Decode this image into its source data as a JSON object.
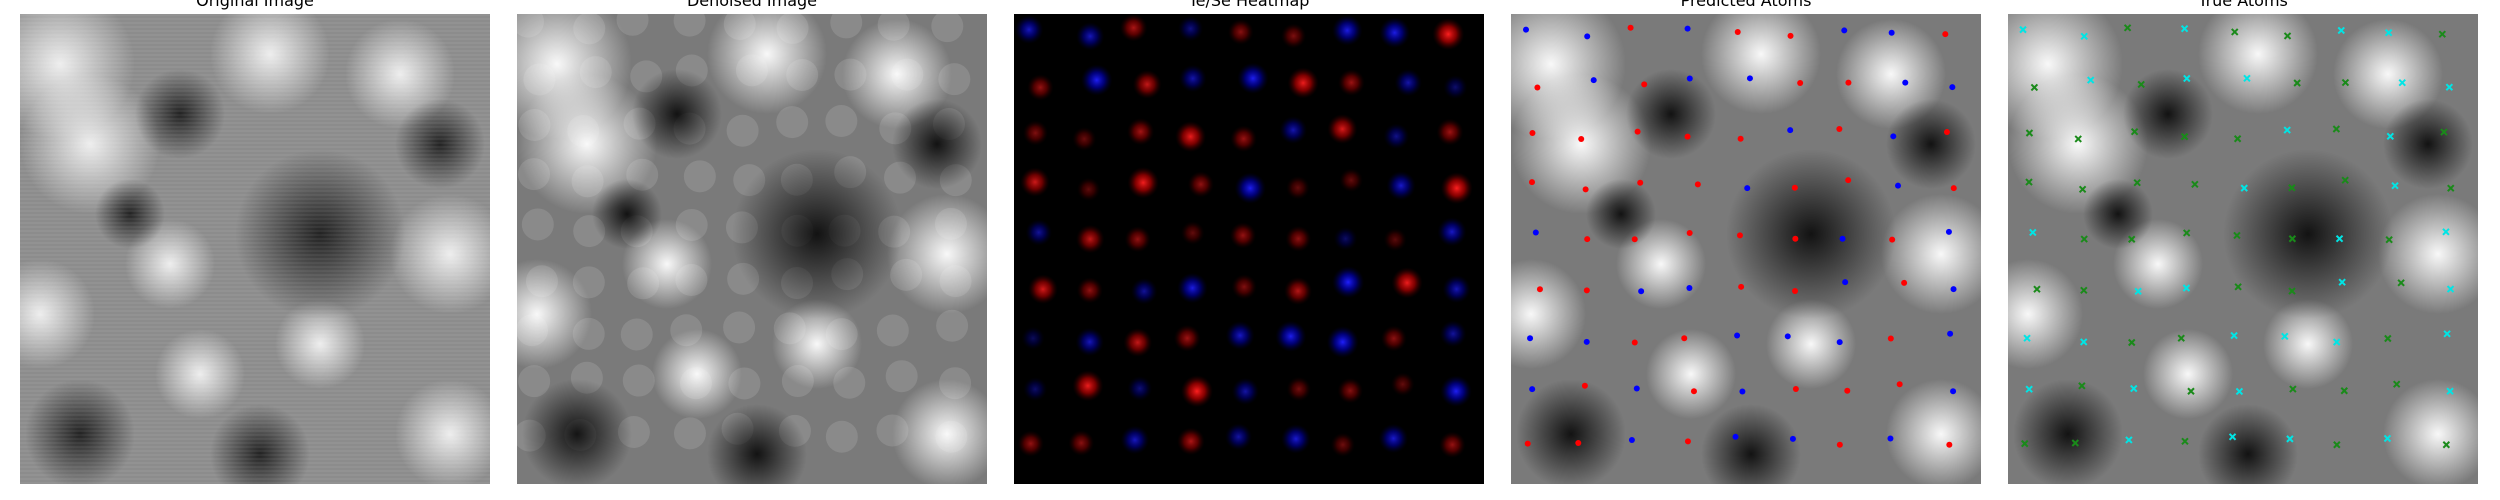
{
  "panels": [
    {
      "id": "original",
      "title": "Original Image"
    },
    {
      "id": "denoised",
      "title": "Denoised Image"
    },
    {
      "id": "heatmap",
      "title": "Te/Se Heatmap"
    },
    {
      "id": "predicted",
      "title": "Predicted Atoms"
    },
    {
      "id": "true",
      "title": "True Atoms"
    }
  ],
  "colors": {
    "te": "#ff0000",
    "se": "#0000ff",
    "true_a": "#00e5e5",
    "true_b": "#1a8a1a"
  },
  "markers": {
    "predicted": "dot",
    "true": "x"
  }
}
